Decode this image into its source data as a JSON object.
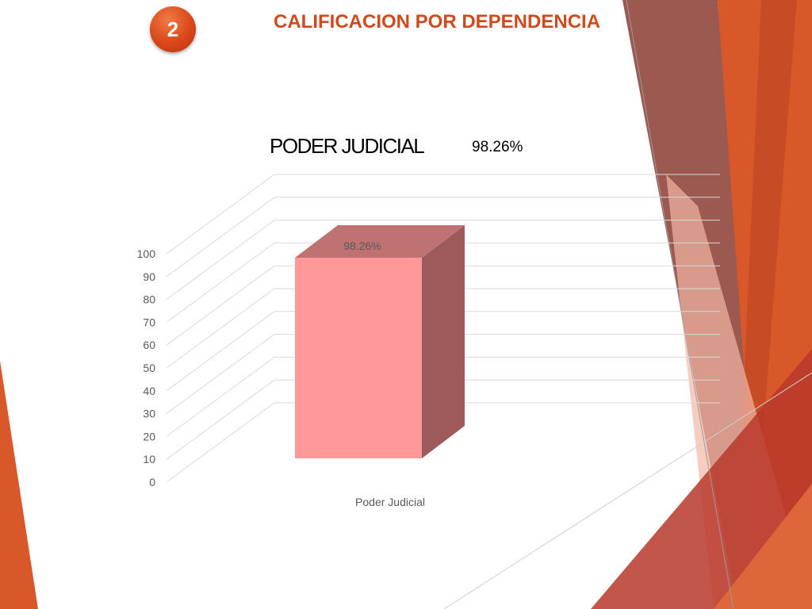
{
  "slide": {
    "number": "2",
    "title": "CALIFICACION POR DEPENDENCIA"
  },
  "colors": {
    "accent": "#d04a1e",
    "bar_front": "#ff9999",
    "bar_side": "#9e5a5a",
    "bar_top": "#bf7272"
  },
  "chart_data": {
    "type": "bar",
    "title": "PODER JUDICIAL",
    "subtitle": "98.26%",
    "categories": [
      "Poder Judicial"
    ],
    "values": [
      98.26
    ],
    "data_labels": [
      "98.26%"
    ],
    "xlabel": "",
    "ylabel": "",
    "ylim": [
      0,
      100
    ],
    "yticks": [
      0,
      10,
      20,
      30,
      40,
      50,
      60,
      70,
      80,
      90,
      100
    ],
    "grid": true,
    "style": "3d-column"
  }
}
